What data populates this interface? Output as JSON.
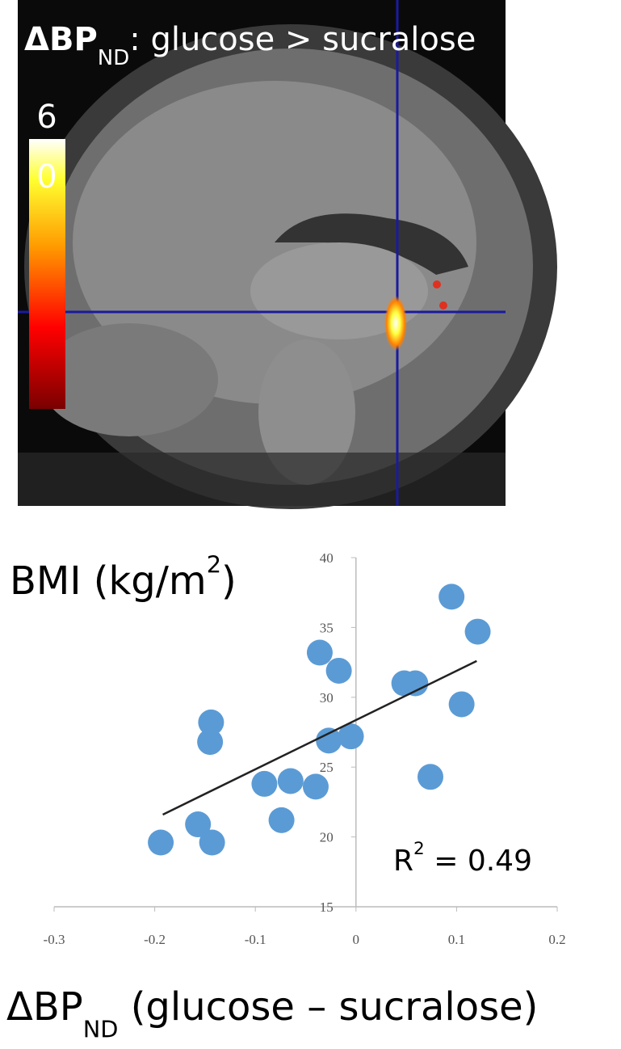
{
  "image_panel": {
    "title_parts": [
      "ΔBP",
      "ND",
      ": glucose > sucralose"
    ],
    "colorbar_labels": [
      6,
      0
    ]
  },
  "chart_data": {
    "type": "scatter",
    "x": [
      -0.194,
      -0.157,
      -0.143,
      -0.144,
      -0.145,
      -0.091,
      -0.065,
      -0.04,
      -0.074,
      -0.036,
      -0.017,
      -0.027,
      -0.005,
      0.048,
      0.059,
      0.074,
      0.095,
      0.105,
      0.121
    ],
    "series": [
      {
        "color": "#5b9bd5",
        "values": [
          19.6,
          20.9,
          19.6,
          28.2,
          26.8,
          23.8,
          24.0,
          23.6,
          21.2,
          33.2,
          31.9,
          26.9,
          27.2,
          31.0,
          31.0,
          24.3,
          37.2,
          29.5,
          34.7
        ]
      }
    ],
    "trendline": {
      "x": [
        -0.192,
        0.12
      ],
      "y": [
        21.6,
        32.6
      ],
      "color": "#222222"
    },
    "xlim": [
      -0.3,
      0.2
    ],
    "xticks": [
      -0.3,
      -0.2,
      -0.1,
      0,
      0.1,
      0.2
    ],
    "ylim": [
      15,
      40
    ],
    "yticks": [
      15,
      20,
      25,
      30,
      35,
      40
    ],
    "ylabel_parts": [
      "BMI (kg/m",
      "2",
      ")"
    ],
    "xlabel_parts": [
      "ΔBP",
      "ND",
      " (glucose – sucralose)"
    ],
    "annotation_parts": [
      "R",
      "2",
      " = 0.49"
    ]
  }
}
